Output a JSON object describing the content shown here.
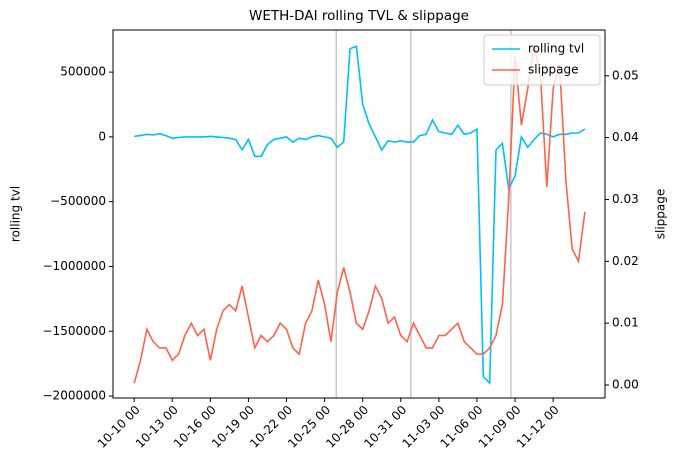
{
  "chart_data": {
    "type": "line",
    "title": "WETH-DAI rolling TVL & slippage",
    "ylabel": "rolling tvl",
    "y2label": "slippage",
    "x": [
      "10-10 00",
      "10-10 12",
      "10-11 00",
      "10-11 12",
      "10-12 00",
      "10-12 12",
      "10-13 00",
      "10-13 12",
      "10-14 00",
      "10-14 12",
      "10-15 00",
      "10-15 12",
      "10-16 00",
      "10-16 12",
      "10-17 00",
      "10-17 12",
      "10-18 00",
      "10-18 12",
      "10-19 00",
      "10-19 12",
      "10-20 00",
      "10-20 12",
      "10-21 00",
      "10-21 12",
      "10-22 00",
      "10-22 12",
      "10-23 00",
      "10-23 12",
      "10-24 00",
      "10-24 12",
      "10-25 00",
      "10-25 12",
      "10-26 00",
      "10-26 12",
      "10-27 00",
      "10-27 12",
      "10-28 00",
      "10-28 12",
      "10-29 00",
      "10-29 12",
      "10-30 00",
      "10-30 12",
      "10-31 00",
      "10-31 12",
      "11-01 00",
      "11-01 12",
      "11-02 00",
      "11-02 12",
      "11-03 00",
      "11-03 12",
      "11-04 00",
      "11-04 12",
      "11-05 00",
      "11-05 12",
      "11-06 00",
      "11-06 12",
      "11-07 00",
      "11-07 12",
      "11-08 00",
      "11-08 12",
      "11-09 00",
      "11-09 12",
      "11-10 00",
      "11-10 12",
      "11-11 00",
      "11-11 12",
      "11-12 00",
      "11-12 12",
      "11-13 00",
      "11-13 12",
      "11-14 00",
      "11-14 12"
    ],
    "series": [
      {
        "name": "rolling tvl",
        "color": "#00bfff",
        "axis": "y",
        "values": [
          5000,
          10000,
          20000,
          15000,
          25000,
          10000,
          -10000,
          -5000,
          0,
          0,
          0,
          0,
          5000,
          0,
          -5000,
          -10000,
          -20000,
          -100000,
          -20000,
          -150000,
          -150000,
          -60000,
          -20000,
          -10000,
          0,
          -40000,
          -10000,
          -20000,
          0,
          10000,
          0,
          -10000,
          -80000,
          -40000,
          680000,
          700000,
          250000,
          100000,
          0,
          -100000,
          -30000,
          -40000,
          -30000,
          -40000,
          -40000,
          10000,
          20000,
          130000,
          40000,
          30000,
          20000,
          90000,
          20000,
          30000,
          60000,
          -1850000,
          -1900000,
          -100000,
          -50000,
          -400000,
          -300000,
          0,
          -80000,
          -20000,
          30000,
          20000,
          0,
          20000,
          20000,
          30000,
          30000,
          60000
        ]
      },
      {
        "name": "slippage",
        "color": "#ff6347",
        "axis": "y2",
        "values": [
          0.0003,
          0.004,
          0.009,
          0.007,
          0.006,
          0.006,
          0.004,
          0.005,
          0.008,
          0.01,
          0.008,
          0.009,
          0.004,
          0.009,
          0.012,
          0.013,
          0.012,
          0.016,
          0.011,
          0.006,
          0.008,
          0.007,
          0.008,
          0.01,
          0.009,
          0.006,
          0.005,
          0.01,
          0.012,
          0.017,
          0.013,
          0.007,
          0.015,
          0.019,
          0.015,
          0.01,
          0.009,
          0.012,
          0.016,
          0.014,
          0.01,
          0.011,
          0.008,
          0.007,
          0.01,
          0.008,
          0.006,
          0.006,
          0.008,
          0.008,
          0.009,
          0.01,
          0.007,
          0.006,
          0.005,
          0.005,
          0.006,
          0.008,
          0.013,
          0.03,
          0.053,
          0.042,
          0.048,
          0.055,
          0.05,
          0.032,
          0.048,
          0.052,
          0.033,
          0.022,
          0.02,
          0.028
        ]
      }
    ],
    "xlim": [
      "10-08 08",
      "11-16 02"
    ],
    "xticks": [
      "10-10 00",
      "10-13 00",
      "10-16 00",
      "10-19 00",
      "10-22 00",
      "10-25 00",
      "10-28 00",
      "10-31 00",
      "11-03 00",
      "11-06 00",
      "11-09 00",
      "11-12 00"
    ],
    "ylim": [
      -2015000,
      825000
    ],
    "yticks": [
      {
        "value": -2000000,
        "label": "−2000000"
      },
      {
        "value": -1500000,
        "label": "−1500000"
      },
      {
        "value": -1000000,
        "label": "−1000000"
      },
      {
        "value": -500000,
        "label": "−500000"
      },
      0,
      500000
    ],
    "y2lim": [
      -0.0021,
      0.0574
    ],
    "y2ticks": [
      {
        "value": 0,
        "label": "0.00"
      },
      {
        "value": 0.01,
        "label": "0.01"
      },
      {
        "value": 0.02,
        "label": "0.02"
      },
      {
        "value": 0.03,
        "label": "0.03"
      },
      {
        "value": 0.04,
        "label": "0.04"
      },
      {
        "value": 0.05,
        "label": "0.05"
      }
    ],
    "vlines": [
      "10-25 22",
      "10-31 19",
      "11-08 16"
    ],
    "vline_color": "#c8c8c8",
    "legend": "upper right"
  }
}
